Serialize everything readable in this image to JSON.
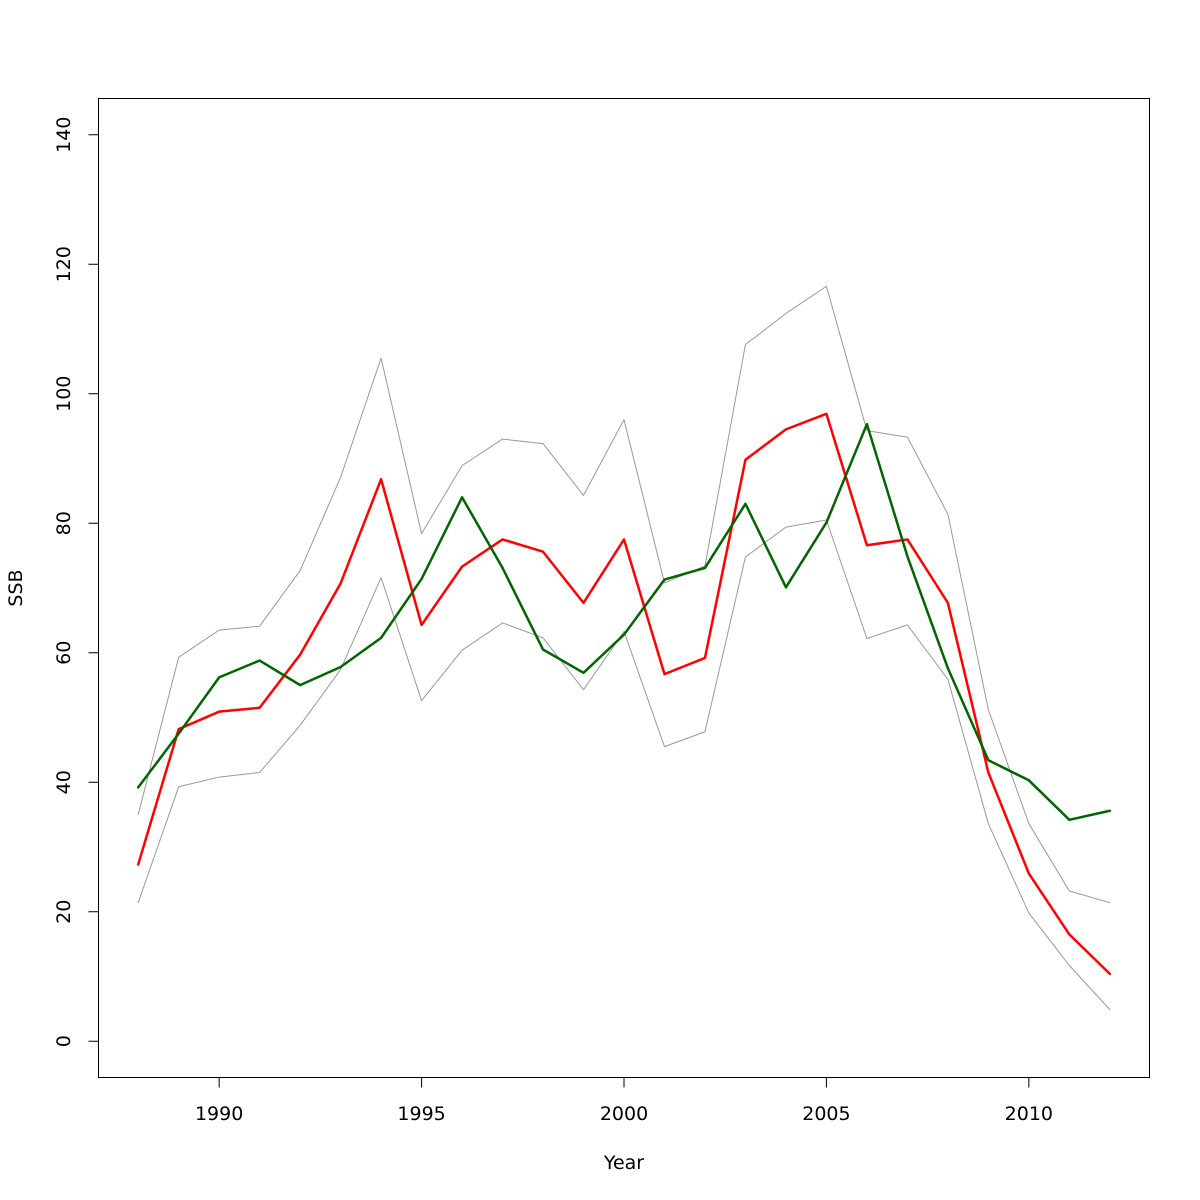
{
  "chart_data": {
    "type": "line",
    "xlabel": "Year",
    "ylabel": "SSB",
    "xlim": [
      1987.02,
      2012.98
    ],
    "ylim": [
      -5.6,
      145.6
    ],
    "xticks": [
      1990,
      1995,
      2000,
      2005,
      2010
    ],
    "yticks": [
      0,
      20,
      40,
      60,
      80,
      100,
      120,
      140
    ],
    "grid": false,
    "x": [
      1988,
      1989,
      1990,
      1991,
      1992,
      1993,
      1994,
      1995,
      1996,
      1997,
      1998,
      1999,
      2000,
      2001,
      2002,
      2003,
      2004,
      2005,
      2006,
      2007,
      2008,
      2009,
      2010,
      2011,
      2012
    ],
    "series": [
      {
        "color": "#999999",
        "width": 1,
        "values": [
          35.0,
          59.3,
          63.5,
          64.1,
          72.7,
          87.1,
          105.5,
          78.4,
          88.9,
          93.0,
          92.3,
          84.3,
          96.0,
          70.8,
          73.4,
          107.6,
          112.4,
          116.6,
          94.3,
          93.3,
          81.4,
          51.2,
          33.6,
          23.2,
          21.4
        ]
      },
      {
        "color": "#999999",
        "width": 1,
        "values": [
          21.4,
          39.3,
          40.8,
          41.5,
          48.8,
          57.4,
          71.6,
          52.6,
          60.4,
          64.6,
          62.3,
          54.3,
          63.3,
          45.5,
          47.8,
          74.8,
          79.4,
          80.5,
          62.2,
          64.3,
          55.9,
          33.6,
          19.8,
          11.7,
          4.9
        ]
      },
      {
        "color": "#ff0000",
        "width": 2.5,
        "values": [
          27.3,
          48.2,
          50.9,
          51.5,
          59.7,
          70.7,
          86.8,
          64.3,
          73.3,
          77.5,
          75.6,
          67.7,
          77.5,
          56.7,
          59.2,
          89.8,
          94.5,
          96.9,
          76.6,
          77.5,
          67.7,
          41.5,
          25.9,
          16.5,
          10.4
        ]
      },
      {
        "color": "#006400",
        "width": 2.5,
        "values": [
          39.2,
          47.5,
          56.2,
          58.8,
          55.0,
          57.8,
          62.3,
          71.4,
          84.0,
          73.1,
          60.5,
          56.9,
          62.8,
          71.3,
          73.1,
          83.0,
          70.1,
          80.1,
          95.3,
          74.9,
          57.6,
          43.4,
          40.3,
          34.2,
          35.6
        ]
      }
    ]
  }
}
